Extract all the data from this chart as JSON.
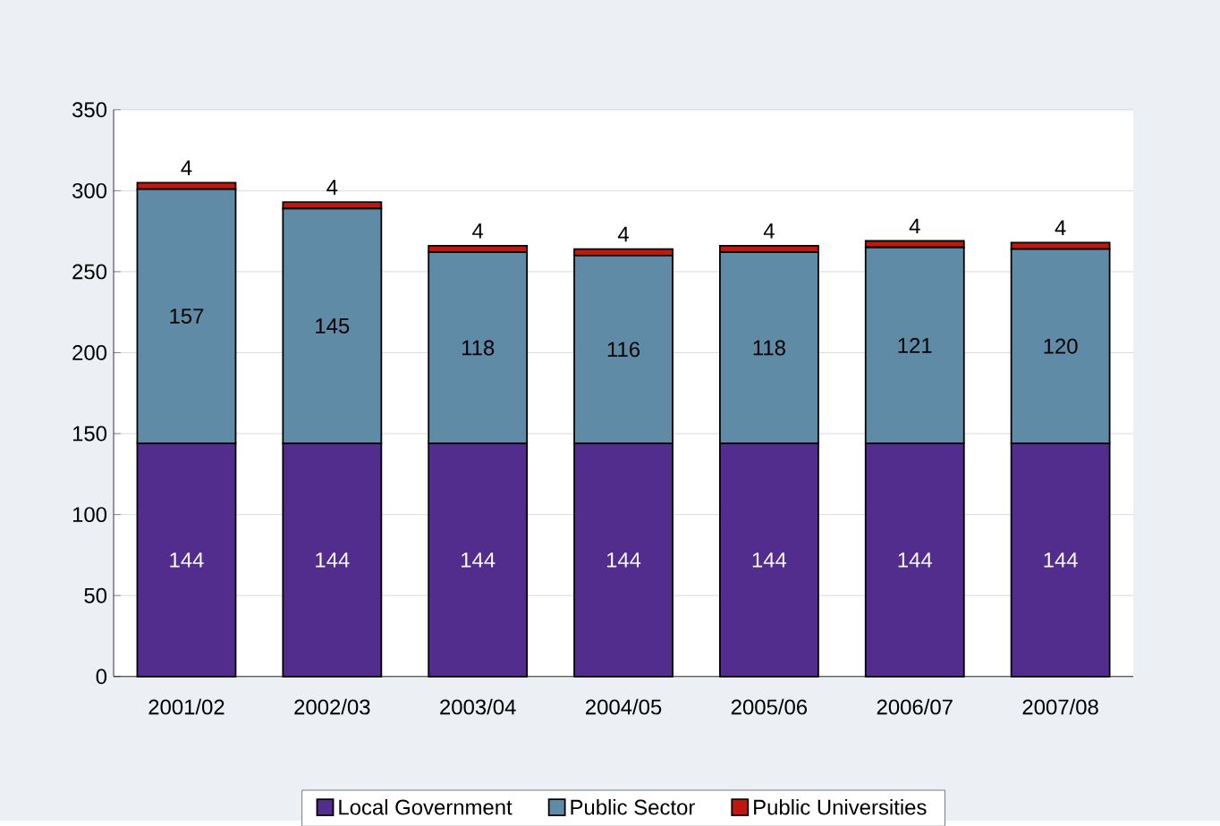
{
  "chart_data": {
    "type": "bar",
    "stacked": true,
    "categories": [
      "2001/02",
      "2002/03",
      "2003/04",
      "2004/05",
      "2005/06",
      "2006/07",
      "2007/08"
    ],
    "series": [
      {
        "name": "Local Government",
        "color": "#532D8E",
        "values": [
          144,
          144,
          144,
          144,
          144,
          144,
          144
        ]
      },
      {
        "name": "Public Sector",
        "color": "#5F8BA6",
        "values": [
          157,
          145,
          118,
          116,
          118,
          121,
          120
        ]
      },
      {
        "name": "Public Universities",
        "color": "#C0170F",
        "values": [
          4,
          4,
          4,
          4,
          4,
          4,
          4
        ]
      }
    ],
    "ylim": [
      0,
      350
    ],
    "yticks": [
      0,
      50,
      100,
      150,
      200,
      250,
      300,
      350
    ],
    "grid": "y",
    "legend": "bottom",
    "data_labels": true
  }
}
